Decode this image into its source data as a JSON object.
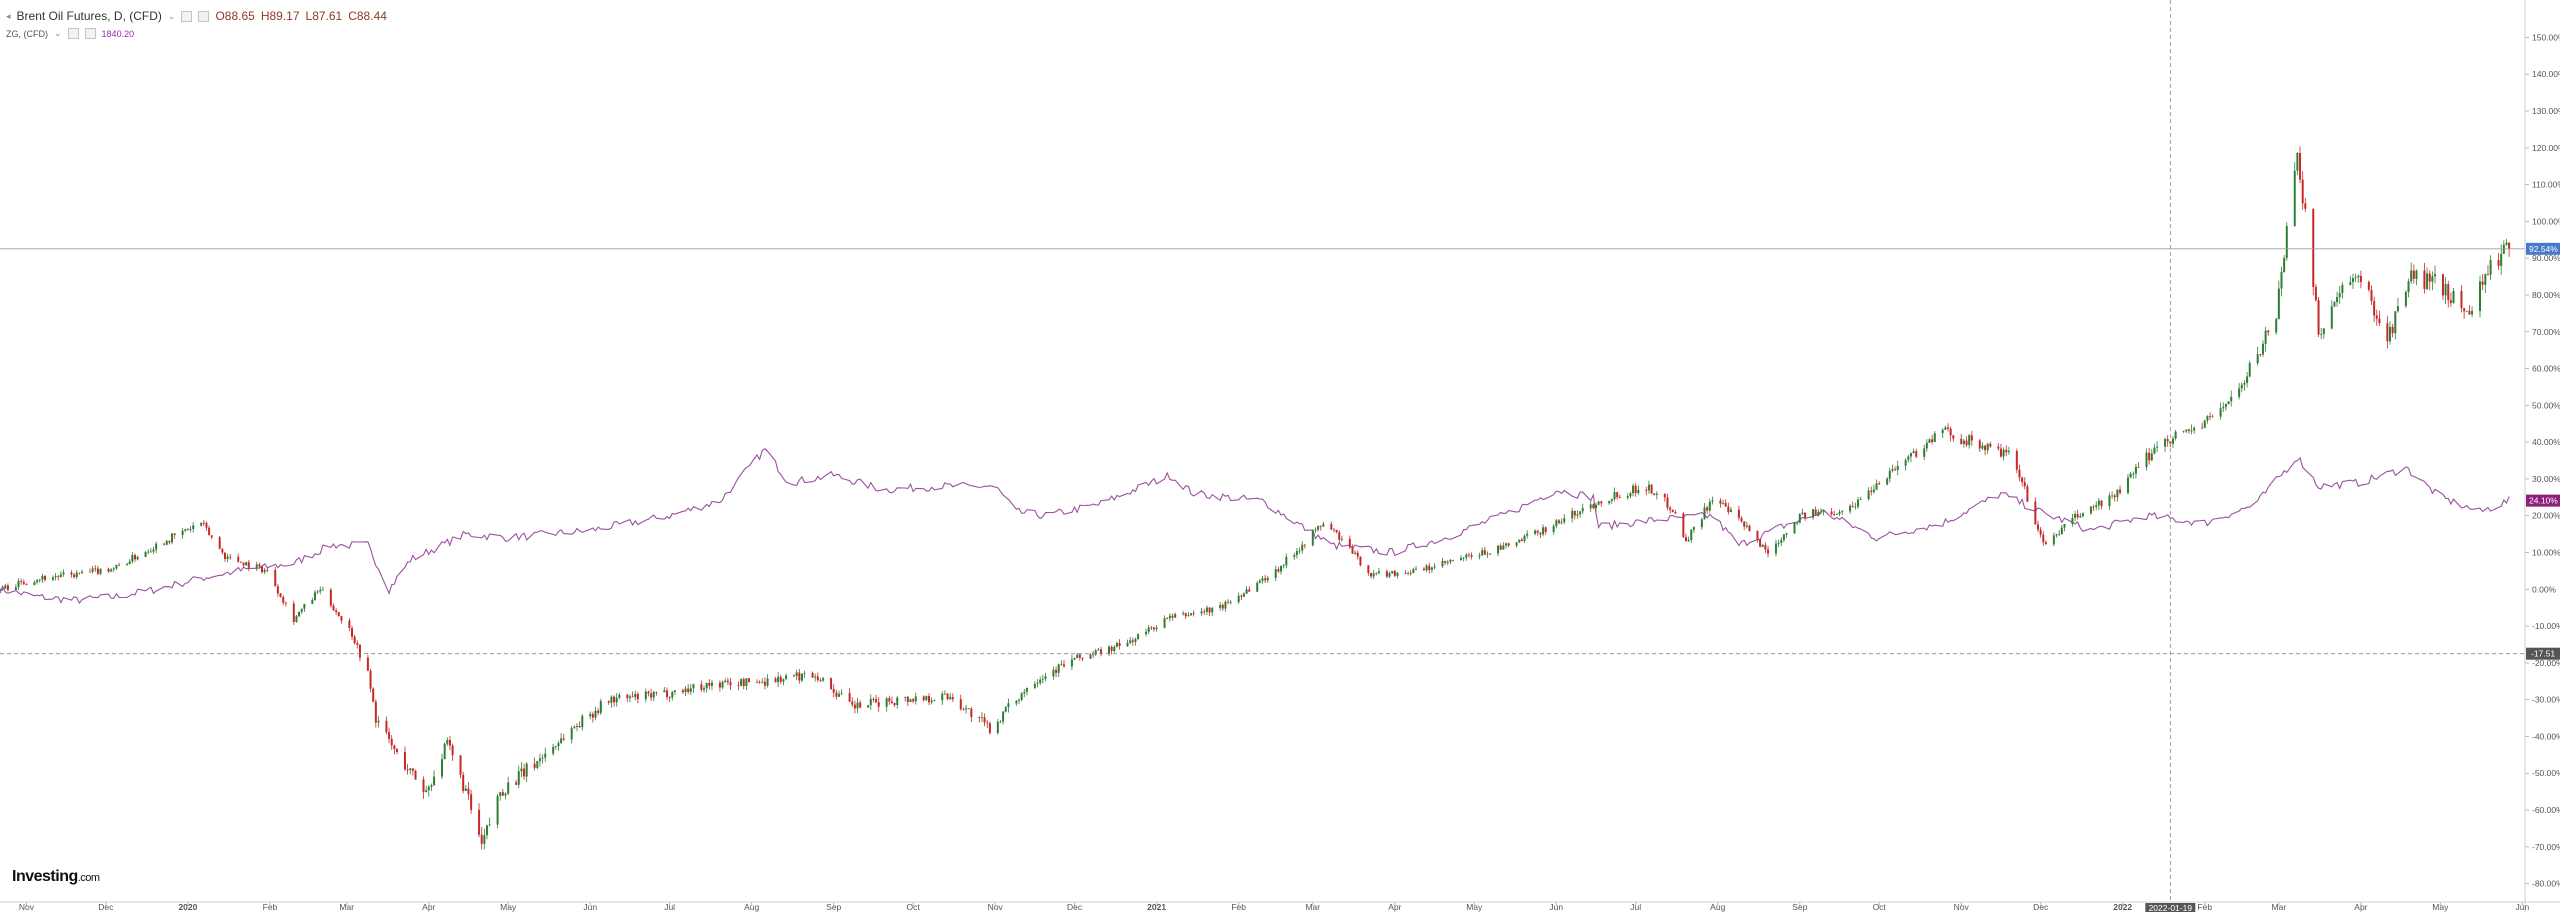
{
  "legend": {
    "main": {
      "title": "Brent Oil Futures, D, (CFD)",
      "open": "O88.65",
      "high": "H89.17",
      "low": "L87.61",
      "close": "C88.44"
    },
    "overlay": {
      "title": "ZG, (CFD)",
      "value": "1840.20"
    }
  },
  "logo": {
    "brand": "Investing",
    "suffix": ".com"
  },
  "markers": {
    "last_price_label": "92.54%",
    "overlay_label": "24.10%",
    "crosshair_y_label": "-17.51",
    "crosshair_x_label": "2022-01-19"
  },
  "colors": {
    "up": "#2e7d32",
    "down": "#c62828",
    "overlay": "#9c4fa0",
    "last_price_bg": "#4a78c8",
    "overlay_label_bg": "#8e1f7a",
    "crosshair_label_bg": "#555555",
    "grid": "#eeeeee",
    "axis_text": "#555555"
  },
  "chart_data": {
    "type": "line",
    "scale": "percent",
    "ylim": [
      -85,
      158
    ],
    "ytick_labels": [
      "150.00%",
      "140.00%",
      "130.00%",
      "120.00%",
      "110.00%",
      "100.00%",
      "90.00%",
      "80.00%",
      "70.00%",
      "60.00%",
      "50.00%",
      "40.00%",
      "30.00%",
      "20.00%",
      "10.00%",
      "0.00%",
      "-10.00%",
      "-20.00%",
      "-30.00%",
      "-40.00%",
      "-50.00%",
      "-60.00%",
      "-70.00%",
      "-80.00%"
    ],
    "ytick_values": [
      150,
      140,
      130,
      120,
      110,
      100,
      90,
      80,
      70,
      60,
      50,
      40,
      30,
      20,
      10,
      0,
      -10,
      -20,
      -30,
      -40,
      -50,
      -60,
      -70,
      -80
    ],
    "xlim": [
      "2019-10-22",
      "2022-06-02"
    ],
    "xtick_labels": [
      "Nov",
      "Dec",
      "2020",
      "Feb",
      "Mar",
      "Apr",
      "May",
      "Jun",
      "Jul",
      "Aug",
      "Sep",
      "Oct",
      "Nov",
      "Dec",
      "2021",
      "Feb",
      "Mar",
      "Apr",
      "May",
      "Jun",
      "Jul",
      "Aug",
      "Sep",
      "Oct",
      "Nov",
      "Dec",
      "2022",
      "Feb",
      "Mar",
      "Apr",
      "May",
      "Jun"
    ],
    "xtick_dates": [
      "2019-11-01",
      "2019-12-01",
      "2020-01-01",
      "2020-02-01",
      "2020-03-01",
      "2020-04-01",
      "2020-05-01",
      "2020-06-01",
      "2020-07-01",
      "2020-08-01",
      "2020-09-01",
      "2020-10-01",
      "2020-11-01",
      "2020-12-01",
      "2021-01-01",
      "2021-02-01",
      "2021-03-01",
      "2021-04-01",
      "2021-05-01",
      "2021-06-01",
      "2021-07-01",
      "2021-08-01",
      "2021-09-01",
      "2021-10-01",
      "2021-11-01",
      "2021-12-01",
      "2022-01-01",
      "2022-02-01",
      "2022-03-01",
      "2022-04-01",
      "2022-05-01",
      "2022-06-01"
    ],
    "last_price": 92.54,
    "crosshair": {
      "date": "2022-01-19",
      "value": -17.51
    },
    "series": [
      {
        "name": "Brent Oil Futures, D, (CFD)",
        "style": "candles",
        "points": [
          [
            "2019-10-22",
            0
          ],
          [
            "2019-11-05",
            3
          ],
          [
            "2019-11-20",
            4
          ],
          [
            "2019-12-05",
            6
          ],
          [
            "2019-12-20",
            12
          ],
          [
            "2020-01-06",
            18
          ],
          [
            "2020-01-15",
            9
          ],
          [
            "2020-01-31",
            5
          ],
          [
            "2020-02-10",
            -8
          ],
          [
            "2020-02-20",
            0
          ],
          [
            "2020-03-03",
            -12
          ],
          [
            "2020-03-09",
            -23
          ],
          [
            "2020-03-12",
            -35
          ],
          [
            "2020-03-20",
            -45
          ],
          [
            "2020-03-31",
            -55
          ],
          [
            "2020-04-08",
            -42
          ],
          [
            "2020-04-15",
            -55
          ],
          [
            "2020-04-21",
            -70
          ],
          [
            "2020-04-28",
            -55
          ],
          [
            "2020-05-10",
            -48
          ],
          [
            "2020-05-25",
            -38
          ],
          [
            "2020-06-08",
            -30
          ],
          [
            "2020-06-25",
            -29
          ],
          [
            "2020-07-15",
            -26
          ],
          [
            "2020-08-05",
            -25
          ],
          [
            "2020-08-25",
            -23
          ],
          [
            "2020-09-08",
            -32
          ],
          [
            "2020-09-25",
            -30
          ],
          [
            "2020-10-15",
            -29
          ],
          [
            "2020-10-30",
            -38
          ],
          [
            "2020-11-15",
            -25
          ],
          [
            "2020-12-01",
            -19
          ],
          [
            "2020-12-20",
            -15
          ],
          [
            "2021-01-05",
            -8
          ],
          [
            "2021-01-25",
            -5
          ],
          [
            "2021-02-15",
            5
          ],
          [
            "2021-03-05",
            18
          ],
          [
            "2021-03-10",
            15
          ],
          [
            "2021-03-23",
            4
          ],
          [
            "2021-04-10",
            5
          ],
          [
            "2021-04-25",
            8
          ],
          [
            "2021-05-15",
            12
          ],
          [
            "2021-06-01",
            18
          ],
          [
            "2021-06-20",
            25
          ],
          [
            "2021-07-05",
            28
          ],
          [
            "2021-07-15",
            22
          ],
          [
            "2021-07-20",
            13
          ],
          [
            "2021-07-30",
            25
          ],
          [
            "2021-08-10",
            18
          ],
          [
            "2021-08-20",
            10
          ],
          [
            "2021-09-01",
            20
          ],
          [
            "2021-09-20",
            22
          ],
          [
            "2021-10-05",
            32
          ],
          [
            "2021-10-25",
            43
          ],
          [
            "2021-11-05",
            40
          ],
          [
            "2021-11-20",
            36
          ],
          [
            "2021-11-26",
            25
          ],
          [
            "2021-12-02",
            12
          ],
          [
            "2021-12-15",
            20
          ],
          [
            "2021-12-30",
            26
          ],
          [
            "2022-01-15",
            40
          ],
          [
            "2022-02-01",
            45
          ],
          [
            "2022-02-15",
            55
          ],
          [
            "2022-02-28",
            75
          ],
          [
            "2022-03-08",
            120
          ],
          [
            "2022-03-16",
            70
          ],
          [
            "2022-03-24",
            80
          ],
          [
            "2022-04-01",
            85
          ],
          [
            "2022-04-11",
            68
          ],
          [
            "2022-04-20",
            85
          ],
          [
            "2022-05-01",
            83
          ],
          [
            "2022-05-11",
            75
          ],
          [
            "2022-05-20",
            88
          ],
          [
            "2022-05-27",
            92.54
          ]
        ]
      },
      {
        "name": "ZG, (CFD)",
        "style": "line",
        "points": [
          [
            "2019-10-22",
            0
          ],
          [
            "2019-11-05",
            -2
          ],
          [
            "2019-11-20",
            -3
          ],
          [
            "2019-12-05",
            -2
          ],
          [
            "2019-12-20",
            0
          ],
          [
            "2020-01-06",
            3
          ],
          [
            "2020-01-20",
            5
          ],
          [
            "2020-02-10",
            7
          ],
          [
            "2020-02-24",
            12
          ],
          [
            "2020-03-09",
            12
          ],
          [
            "2020-03-17",
            0
          ],
          [
            "2020-03-25",
            8
          ],
          [
            "2020-04-15",
            15
          ],
          [
            "2020-05-01",
            14
          ],
          [
            "2020-06-01",
            16
          ],
          [
            "2020-07-01",
            20
          ],
          [
            "2020-07-20",
            24
          ],
          [
            "2020-08-06",
            38
          ],
          [
            "2020-08-15",
            29
          ],
          [
            "2020-09-01",
            31
          ],
          [
            "2020-09-20",
            27
          ],
          [
            "2020-10-10",
            28
          ],
          [
            "2020-11-01",
            28
          ],
          [
            "2020-11-09",
            21
          ],
          [
            "2020-11-20",
            20
          ],
          [
            "2020-12-10",
            23
          ],
          [
            "2021-01-06",
            31
          ],
          [
            "2021-01-15",
            26
          ],
          [
            "2021-02-10",
            24
          ],
          [
            "2021-03-08",
            12
          ],
          [
            "2021-03-31",
            10
          ],
          [
            "2021-04-20",
            14
          ],
          [
            "2021-05-15",
            21
          ],
          [
            "2021-06-01",
            27
          ],
          [
            "2021-06-15",
            25
          ],
          [
            "2021-06-17",
            17
          ],
          [
            "2021-07-10",
            19
          ],
          [
            "2021-07-30",
            20
          ],
          [
            "2021-08-09",
            12
          ],
          [
            "2021-08-25",
            17
          ],
          [
            "2021-09-10",
            21
          ],
          [
            "2021-09-30",
            14
          ],
          [
            "2021-10-25",
            18
          ],
          [
            "2021-11-16",
            26
          ],
          [
            "2021-12-01",
            21
          ],
          [
            "2021-12-20",
            16
          ],
          [
            "2022-01-10",
            20
          ],
          [
            "2022-02-01",
            18
          ],
          [
            "2022-02-20",
            23
          ],
          [
            "2022-03-08",
            36
          ],
          [
            "2022-03-16",
            28
          ],
          [
            "2022-04-01",
            29
          ],
          [
            "2022-04-18",
            33
          ],
          [
            "2022-05-01",
            25
          ],
          [
            "2022-05-16",
            21
          ],
          [
            "2022-05-27",
            24.1
          ]
        ]
      }
    ]
  }
}
